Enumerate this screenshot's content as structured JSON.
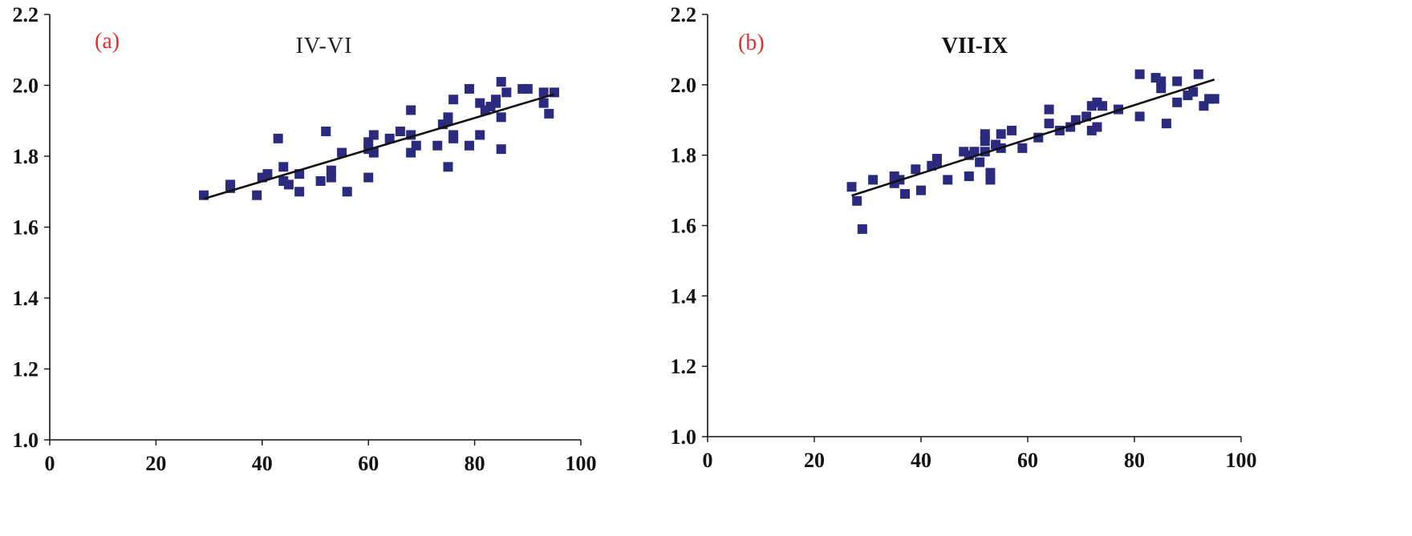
{
  "colors": {
    "marker": "#2b2a7e",
    "fit_line": "#111111",
    "axis": "#111111",
    "panel_label": "#e0302f"
  },
  "chart_data": [
    {
      "type": "scatter",
      "panel_label": "(a)",
      "title": "IV-VI",
      "title_style": "normal",
      "xlim": [
        0,
        100
      ],
      "ylim": [
        1.0,
        2.2
      ],
      "xticks": [
        0,
        20,
        40,
        60,
        80,
        100
      ],
      "yticks": [
        1.0,
        1.2,
        1.4,
        1.6,
        1.8,
        2.0,
        2.2
      ],
      "xtick_labels": [
        "0",
        "20",
        "40",
        "60",
        "80",
        "100"
      ],
      "ytick_labels": [
        "1.0",
        "1.2",
        "1.4",
        "1.6",
        "1.8",
        "2.0",
        "2.2"
      ],
      "xlabel": "",
      "ylabel": "",
      "grid": false,
      "points": [
        [
          29,
          1.69
        ],
        [
          34,
          1.71
        ],
        [
          34,
          1.72
        ],
        [
          39,
          1.69
        ],
        [
          40,
          1.74
        ],
        [
          41,
          1.75
        ],
        [
          43,
          1.85
        ],
        [
          44,
          1.77
        ],
        [
          44,
          1.73
        ],
        [
          45,
          1.72
        ],
        [
          47,
          1.7
        ],
        [
          47,
          1.75
        ],
        [
          51,
          1.73
        ],
        [
          52,
          1.87
        ],
        [
          53,
          1.74
        ],
        [
          53,
          1.76
        ],
        [
          55,
          1.81
        ],
        [
          56,
          1.7
        ],
        [
          60,
          1.84
        ],
        [
          60,
          1.82
        ],
        [
          60,
          1.74
        ],
        [
          61,
          1.86
        ],
        [
          61,
          1.81
        ],
        [
          64,
          1.85
        ],
        [
          66,
          1.87
        ],
        [
          68,
          1.93
        ],
        [
          68,
          1.86
        ],
        [
          68,
          1.81
        ],
        [
          69,
          1.83
        ],
        [
          73,
          1.83
        ],
        [
          74,
          1.89
        ],
        [
          75,
          1.91
        ],
        [
          75,
          1.9
        ],
        [
          75,
          1.77
        ],
        [
          76,
          1.96
        ],
        [
          76,
          1.86
        ],
        [
          76,
          1.85
        ],
        [
          79,
          1.99
        ],
        [
          79,
          1.83
        ],
        [
          81,
          1.95
        ],
        [
          81,
          1.86
        ],
        [
          82,
          1.93
        ],
        [
          83,
          1.94
        ],
        [
          84,
          1.96
        ],
        [
          84,
          1.95
        ],
        [
          85,
          2.01
        ],
        [
          85,
          1.91
        ],
        [
          85,
          1.82
        ],
        [
          86,
          1.98
        ],
        [
          89,
          1.99
        ],
        [
          90,
          1.99
        ],
        [
          93,
          1.98
        ],
        [
          93,
          1.95
        ],
        [
          94,
          1.92
        ],
        [
          95,
          1.98
        ]
      ],
      "fit_line": {
        "x": [
          29,
          95
        ],
        "y": [
          1.68,
          1.975
        ]
      }
    },
    {
      "type": "scatter",
      "panel_label": "(b)",
      "title": "VII-IX",
      "title_style": "bold",
      "xlim": [
        0,
        100
      ],
      "ylim": [
        1.0,
        2.2
      ],
      "xticks": [
        0,
        20,
        40,
        60,
        80,
        100
      ],
      "yticks": [
        1.0,
        1.2,
        1.4,
        1.6,
        1.8,
        2.0,
        2.2
      ],
      "xtick_labels": [
        "0",
        "20",
        "40",
        "60",
        "80",
        "100"
      ],
      "ytick_labels": [
        "1.0",
        "1.2",
        "1.4",
        "1.6",
        "1.8",
        "2.0",
        "2.2"
      ],
      "xlabel": "",
      "ylabel": "",
      "grid": false,
      "points": [
        [
          27,
          1.71
        ],
        [
          28,
          1.67
        ],
        [
          29,
          1.59
        ],
        [
          31,
          1.73
        ],
        [
          35,
          1.74
        ],
        [
          35,
          1.72
        ],
        [
          36,
          1.73
        ],
        [
          37,
          1.69
        ],
        [
          39,
          1.76
        ],
        [
          40,
          1.7
        ],
        [
          42,
          1.77
        ],
        [
          43,
          1.79
        ],
        [
          43,
          1.78
        ],
        [
          45,
          1.73
        ],
        [
          48,
          1.81
        ],
        [
          49,
          1.8
        ],
        [
          49,
          1.74
        ],
        [
          50,
          1.81
        ],
        [
          51,
          1.78
        ],
        [
          52,
          1.86
        ],
        [
          52,
          1.84
        ],
        [
          52,
          1.81
        ],
        [
          53,
          1.75
        ],
        [
          53,
          1.73
        ],
        [
          54,
          1.83
        ],
        [
          55,
          1.86
        ],
        [
          55,
          1.82
        ],
        [
          57,
          1.87
        ],
        [
          59,
          1.82
        ],
        [
          62,
          1.85
        ],
        [
          64,
          1.93
        ],
        [
          64,
          1.89
        ],
        [
          66,
          1.87
        ],
        [
          68,
          1.88
        ],
        [
          69,
          1.9
        ],
        [
          71,
          1.91
        ],
        [
          72,
          1.94
        ],
        [
          72,
          1.87
        ],
        [
          73,
          1.95
        ],
        [
          73,
          1.88
        ],
        [
          74,
          1.94
        ],
        [
          77,
          1.93
        ],
        [
          81,
          2.03
        ],
        [
          81,
          1.91
        ],
        [
          84,
          2.02
        ],
        [
          85,
          2.01
        ],
        [
          85,
          1.99
        ],
        [
          86,
          1.89
        ],
        [
          88,
          2.01
        ],
        [
          88,
          1.95
        ],
        [
          90,
          1.97
        ],
        [
          91,
          1.98
        ],
        [
          92,
          2.03
        ],
        [
          93,
          1.94
        ],
        [
          94,
          1.96
        ],
        [
          95,
          1.96
        ]
      ],
      "fit_line": {
        "x": [
          27,
          95
        ],
        "y": [
          1.685,
          2.015
        ]
      }
    }
  ]
}
